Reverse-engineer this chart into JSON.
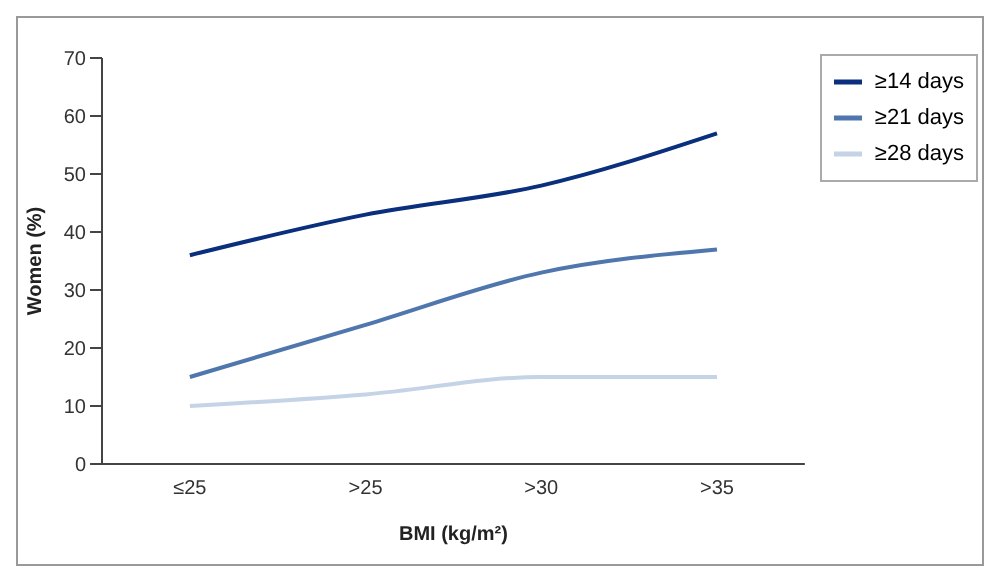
{
  "chart_data": {
    "type": "line",
    "xlabel": "BMI (kg/m²)",
    "ylabel": "Women (%)",
    "categories": [
      "≤25",
      ">25",
      ">30",
      ">35"
    ],
    "series": [
      {
        "name": "≥14 days",
        "color": "#0a2f7d",
        "values": [
          36,
          43,
          48,
          57
        ]
      },
      {
        "name": "≥21 days",
        "color": "#4f77ad",
        "values": [
          15,
          24,
          33,
          37
        ]
      },
      {
        "name": "≥28 days",
        "color": "#c5d3e6",
        "values": [
          10,
          12,
          15,
          15
        ]
      }
    ],
    "ylim": [
      0,
      70
    ],
    "yticks": [
      0,
      10,
      20,
      30,
      40,
      50,
      60,
      70
    ],
    "grid": false,
    "legend": "top right",
    "marker": "none",
    "line_style": "solid"
  }
}
